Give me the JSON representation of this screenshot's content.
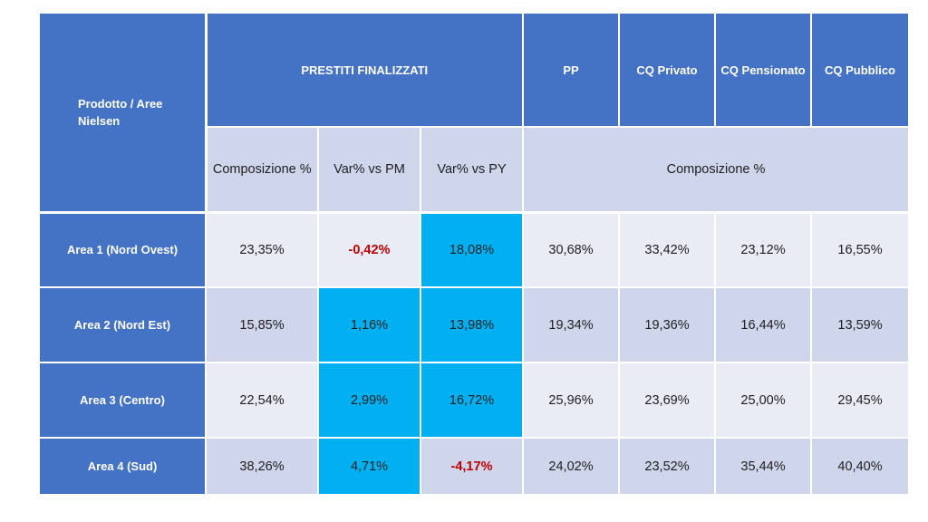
{
  "table": {
    "corner_label": "Prodotto / Aree Nielsen",
    "group_header": "PRESTITI FINALIZZATI",
    "product_headers": [
      "PP",
      "CQ Privato",
      "CQ Pensionato",
      "CQ Pubblico"
    ],
    "sub_headers": [
      "Composizione %",
      "Var% vs PM",
      "Var% vs PY"
    ],
    "composition_header": "Composizione %",
    "rows": [
      {
        "area": "Area 1 (Nord Ovest)",
        "cells": [
          "23,35%",
          "-0,42%",
          "18,08%",
          "30,68%",
          "33,42%",
          "23,12%",
          "16,55%"
        ]
      },
      {
        "area": "Area 2 (Nord Est)",
        "cells": [
          "15,85%",
          "1,16%",
          "13,98%",
          "19,34%",
          "19,36%",
          "16,44%",
          "13,59%"
        ]
      },
      {
        "area": "Area 3 (Centro)",
        "cells": [
          "22,54%",
          "2,99%",
          "16,72%",
          "25,96%",
          "23,69%",
          "25,00%",
          "29,45%"
        ]
      },
      {
        "area": "Area 4 (Sud)",
        "cells": [
          "38,26%",
          "4,71%",
          "-4,17%",
          "24,02%",
          "23,52%",
          "35,44%",
          "40,40%"
        ]
      }
    ]
  },
  "colors": {
    "header_blue": "#4472c4",
    "highlight_cyan": "#00b0f0",
    "negative_red": "#c00000",
    "row_light": "#e9ebf5",
    "row_dark": "#cfd5ea"
  }
}
